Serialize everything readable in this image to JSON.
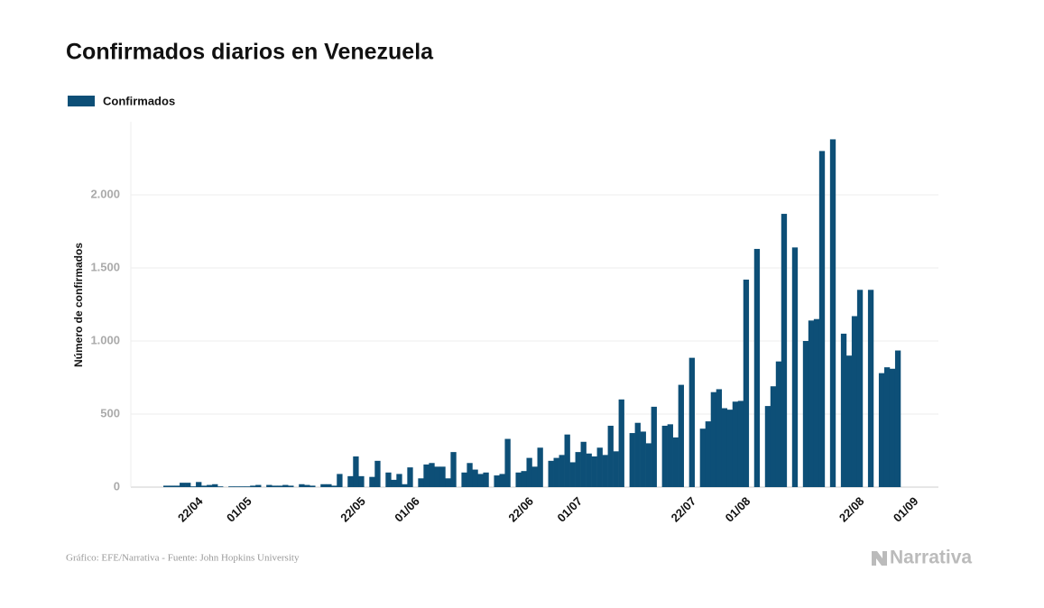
{
  "chart_data": {
    "type": "bar",
    "title": "Confirmados diarios en Venezuela",
    "y_label": "Número de confirmados",
    "source": "Gráfico: EFE/Narrativa - Fuente: John Hopkins University",
    "logo": "Narrativa",
    "categories": [
      null,
      null,
      null,
      null,
      null,
      null,
      null,
      null,
      null,
      null,
      null,
      null,
      "22/04",
      null,
      null,
      null,
      null,
      null,
      null,
      null,
      null,
      "01/05",
      null,
      null,
      null,
      null,
      null,
      null,
      null,
      null,
      null,
      null,
      null,
      null,
      null,
      null,
      null,
      null,
      null,
      null,
      null,
      null,
      "22/05",
      null,
      null,
      null,
      null,
      null,
      null,
      null,
      null,
      null,
      "01/06",
      null,
      null,
      null,
      null,
      null,
      null,
      null,
      null,
      null,
      null,
      null,
      null,
      null,
      null,
      null,
      null,
      null,
      null,
      null,
      null,
      "22/06",
      null,
      null,
      null,
      null,
      null,
      null,
      null,
      null,
      "01/07",
      null,
      null,
      null,
      null,
      null,
      null,
      null,
      null,
      null,
      null,
      null,
      null,
      null,
      null,
      null,
      null,
      null,
      null,
      null,
      null,
      "22/07",
      null,
      null,
      null,
      null,
      null,
      null,
      null,
      null,
      null,
      "01/08",
      null,
      null,
      null,
      null,
      null,
      null,
      null,
      null,
      null,
      null,
      null,
      null,
      null,
      null,
      null,
      null,
      null,
      null,
      null,
      null,
      "22/08",
      null,
      null,
      null,
      null,
      null,
      null,
      null,
      null,
      null,
      "01/09",
      null,
      null,
      null,
      null
    ],
    "series": [
      {
        "name": "Confirmados",
        "color": "#0d4f77",
        "values": [
          0,
          0,
          0,
          0,
          0,
          0,
          10,
          10,
          10,
          30,
          30,
          5,
          35,
          10,
          15,
          20,
          5,
          0,
          5,
          5,
          5,
          5,
          10,
          15,
          0,
          15,
          10,
          10,
          15,
          10,
          0,
          20,
          15,
          10,
          0,
          20,
          20,
          10,
          90,
          0,
          75,
          210,
          75,
          0,
          70,
          180,
          0,
          100,
          50,
          90,
          20,
          135,
          0,
          60,
          155,
          165,
          140,
          140,
          60,
          240,
          0,
          100,
          165,
          120,
          90,
          100,
          0,
          80,
          90,
          330,
          0,
          100,
          110,
          200,
          140,
          270,
          0,
          180,
          200,
          220,
          360,
          170,
          240,
          310,
          230,
          210,
          270,
          220,
          420,
          245,
          600,
          0,
          370,
          440,
          380,
          300,
          550,
          0,
          420,
          430,
          340,
          700,
          0,
          885,
          0,
          400,
          450,
          650,
          670,
          540,
          530,
          585,
          590,
          1420,
          0,
          1630,
          0,
          555,
          690,
          860,
          1870,
          0,
          1640,
          0,
          1000,
          1140,
          1150,
          2300,
          0,
          2380,
          0,
          1050,
          900,
          1170,
          1350,
          0,
          1350,
          0,
          780,
          820,
          810,
          935,
          0,
          0,
          0,
          0,
          0,
          0,
          0
        ]
      }
    ],
    "ylim": [
      0,
      2500
    ],
    "yticks": [
      0,
      500,
      {
        "value": 1000,
        "label": "1.000"
      },
      {
        "value": 1500,
        "label": "1.500"
      },
      {
        "value": 2000,
        "label": "2.000"
      }
    ],
    "grid": true
  }
}
